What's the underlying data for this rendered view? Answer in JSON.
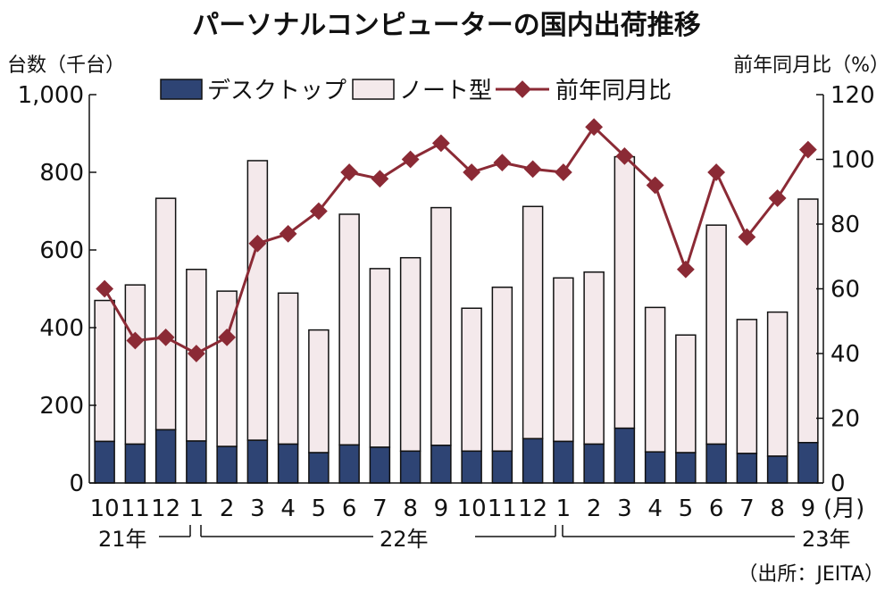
{
  "chart_data": {
    "type": "bar",
    "title": "パーソナルコンピューターの国内出荷推移",
    "ylabel_left": "台数（千台）",
    "ylabel_right": "前年同月比（%）",
    "ylim_left": [
      0,
      1000
    ],
    "ylim_right": [
      0,
      120
    ],
    "yticks_left": [
      "0",
      "200",
      "400",
      "600",
      "800",
      "1,000"
    ],
    "yticks_right": [
      "0",
      "20",
      "40",
      "60",
      "80",
      "100",
      "120"
    ],
    "categories": [
      "10",
      "11",
      "12",
      "1",
      "2",
      "3",
      "4",
      "5",
      "6",
      "7",
      "8",
      "9",
      "10",
      "11",
      "12",
      "1",
      "2",
      "3",
      "4",
      "5",
      "6",
      "7",
      "8",
      "9"
    ],
    "month_unit": "(月)",
    "year_labels": [
      "21年",
      "22年",
      "23年"
    ],
    "series": [
      {
        "name": "デスクトップ",
        "kind": "stacked-bar",
        "color": "#2e4474",
        "values": [
          107,
          100,
          137,
          108,
          94,
          110,
          100,
          78,
          98,
          92,
          82,
          97,
          82,
          82,
          114,
          107,
          100,
          141,
          80,
          78,
          100,
          76,
          69,
          104
        ]
      },
      {
        "name": "ノート型",
        "kind": "stacked-bar",
        "color": "#f4e9eb",
        "values": [
          363,
          410,
          596,
          442,
          400,
          720,
          389,
          316,
          594,
          460,
          498,
          612,
          368,
          422,
          598,
          421,
          443,
          699,
          372,
          303,
          564,
          345,
          371,
          627
        ]
      },
      {
        "name": "前年同月比",
        "kind": "line",
        "axis": "right",
        "color": "#8b2a35",
        "values": [
          60,
          44,
          45,
          40,
          45,
          74,
          77,
          84,
          96,
          94,
          100,
          105,
          96,
          99,
          97,
          96,
          110,
          101,
          92,
          66,
          96,
          76,
          88,
          103
        ]
      }
    ],
    "grid": false,
    "legend_position": "top"
  },
  "source": "（出所：JEITA）"
}
